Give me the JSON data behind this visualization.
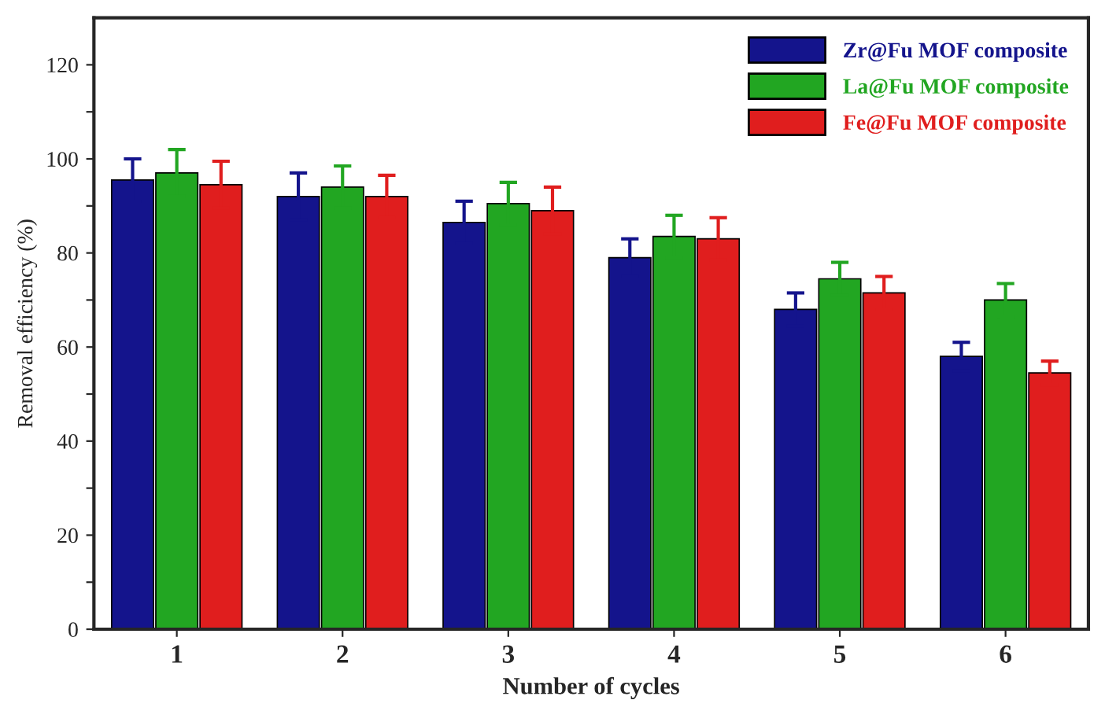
{
  "chart_data": {
    "type": "bar",
    "xlabel": "Number of cycles",
    "ylabel": "Removal efficiency (%)",
    "categories": [
      "1",
      "2",
      "3",
      "4",
      "5",
      "6"
    ],
    "series": [
      {
        "name": "Zr@Fu MOF composite",
        "color": "#14148c",
        "values": [
          95.5,
          92,
          86.5,
          79,
          68,
          58
        ],
        "errors": [
          4.5,
          5,
          4.5,
          4,
          3.5,
          3
        ]
      },
      {
        "name": "La@Fu MOF composite",
        "color": "#22a622",
        "values": [
          97,
          94,
          90.5,
          83.5,
          74.5,
          70
        ],
        "errors": [
          5,
          4.5,
          4.5,
          4.5,
          3.5,
          3.5
        ]
      },
      {
        "name": "Fe@Fu MOF composite",
        "color": "#e01e1e",
        "values": [
          94.5,
          92,
          89,
          83,
          71.5,
          54.5
        ],
        "errors": [
          5,
          4.5,
          5,
          4.5,
          3.5,
          2.5
        ]
      }
    ],
    "ylim": [
      0,
      130
    ],
    "yticks": [
      0,
      {
        "value": 10,
        "label": null
      },
      20,
      {
        "value": 30,
        "label": null
      },
      40,
      {
        "value": 50,
        "label": null
      },
      60,
      {
        "value": 70,
        "label": null
      },
      80,
      {
        "value": 90,
        "label": null
      },
      100,
      {
        "value": 110,
        "label": null
      },
      120
    ],
    "grid": false,
    "legend": "top right"
  }
}
